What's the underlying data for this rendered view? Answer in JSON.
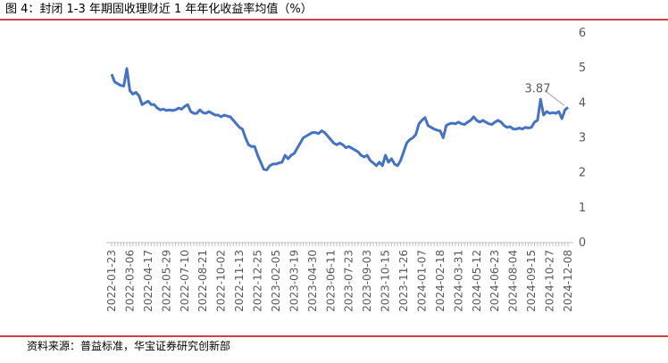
{
  "chart_data": {
    "type": "line",
    "title": "图 4：封闭 1-3 年期固收理财近 1 年年化收益率均值（%）",
    "source": "资料来源：普益标准，华宝证券研究创新部",
    "categories": [
      "2022-01-23",
      null,
      null,
      null,
      null,
      null,
      "2022-03-06",
      null,
      null,
      null,
      null,
      null,
      "2022-04-17",
      null,
      null,
      null,
      null,
      null,
      "2022-05-29",
      null,
      null,
      null,
      null,
      null,
      "2022-07-10",
      null,
      null,
      null,
      null,
      null,
      "2022-08-21",
      null,
      null,
      null,
      null,
      null,
      "2022-10-02",
      null,
      null,
      null,
      null,
      null,
      "2022-11-13",
      null,
      null,
      null,
      null,
      null,
      "2022-12-25",
      null,
      null,
      null,
      null,
      null,
      "2023-02-05",
      null,
      null,
      null,
      null,
      null,
      "2023-03-19",
      null,
      null,
      null,
      null,
      null,
      "2023-04-30",
      null,
      null,
      null,
      null,
      null,
      "2023-06-11",
      null,
      null,
      null,
      null,
      null,
      "2023-07-23",
      null,
      null,
      null,
      null,
      null,
      "2023-09-03",
      null,
      null,
      null,
      null,
      null,
      "2023-10-15",
      null,
      null,
      null,
      null,
      null,
      "2023-11-26",
      null,
      null,
      null,
      null,
      null,
      "2024-01-07",
      null,
      null,
      null,
      null,
      null,
      "2024-02-18",
      null,
      null,
      null,
      null,
      null,
      "2024-03-31",
      null,
      null,
      null,
      null,
      null,
      "2024-05-12",
      null,
      null,
      null,
      null,
      null,
      "2024-06-23",
      null,
      null,
      null,
      null,
      null,
      "2024-08-04",
      null,
      null,
      null,
      null,
      null,
      "2024-09-15",
      null,
      null,
      null,
      null,
      null,
      "2024-10-27",
      null,
      null,
      null,
      null,
      null,
      "2024-12-08"
    ],
    "values": [
      4.82,
      4.6,
      4.55,
      4.5,
      4.48,
      4.98,
      4.35,
      4.25,
      4.3,
      4.2,
      3.95,
      4.0,
      4.05,
      3.95,
      3.95,
      3.85,
      3.8,
      3.82,
      3.78,
      3.8,
      3.78,
      3.8,
      3.85,
      3.82,
      3.9,
      3.95,
      3.75,
      3.7,
      3.7,
      3.8,
      3.72,
      3.7,
      3.75,
      3.7,
      3.65,
      3.65,
      3.6,
      3.65,
      3.62,
      3.6,
      3.5,
      3.4,
      3.3,
      3.25,
      3.0,
      2.8,
      2.75,
      2.75,
      2.5,
      2.3,
      2.1,
      2.08,
      2.2,
      2.25,
      2.25,
      2.28,
      2.3,
      2.5,
      2.4,
      2.5,
      2.55,
      2.7,
      2.85,
      3.0,
      3.05,
      3.1,
      3.15,
      3.15,
      3.12,
      3.2,
      3.15,
      3.05,
      2.95,
      2.85,
      2.8,
      2.85,
      2.8,
      2.72,
      2.75,
      2.7,
      2.65,
      2.6,
      2.5,
      2.45,
      2.5,
      2.35,
      2.28,
      2.2,
      2.3,
      2.2,
      2.5,
      2.3,
      2.4,
      2.25,
      2.2,
      2.35,
      2.6,
      2.85,
      2.95,
      3.0,
      3.1,
      3.4,
      3.5,
      3.58,
      3.35,
      3.3,
      3.25,
      3.22,
      3.2,
      3.0,
      3.35,
      3.4,
      3.42,
      3.4,
      3.45,
      3.4,
      3.38,
      3.45,
      3.5,
      3.6,
      3.5,
      3.45,
      3.5,
      3.45,
      3.4,
      3.38,
      3.45,
      3.5,
      3.45,
      3.35,
      3.3,
      3.32,
      3.25,
      3.25,
      3.28,
      3.25,
      3.3,
      3.28,
      3.3,
      3.45,
      3.5,
      4.1,
      3.65,
      3.75,
      3.7,
      3.72,
      3.7,
      3.75,
      3.55,
      3.8,
      3.87
    ],
    "color": "#4472c4",
    "ylim": [
      0,
      6
    ],
    "yticks": [
      0,
      1,
      2,
      3,
      4,
      5,
      6
    ],
    "y_axis_side": "right",
    "grid": false
  }
}
